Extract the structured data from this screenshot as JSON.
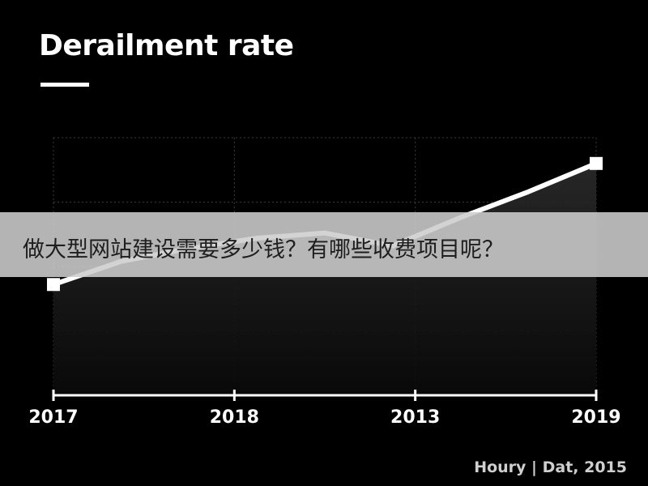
{
  "chart_data": {
    "type": "line",
    "title": "Derailment rate",
    "x_tick_labels": [
      "2017",
      "2018",
      "2013",
      "2019"
    ],
    "series": [
      {
        "values": [
          0.43,
          0.52,
          0.57,
          0.61,
          0.63,
          0.58,
          0.69,
          0.79,
          0.9
        ]
      }
    ],
    "ylim": [
      0,
      1
    ],
    "grid": true,
    "line_color": "#ffffff",
    "background": "#000000"
  },
  "source": "Houry | Dat, 2015",
  "banner": {
    "text": "做大型网站建设需要多少钱？有哪些收费项目呢？"
  }
}
